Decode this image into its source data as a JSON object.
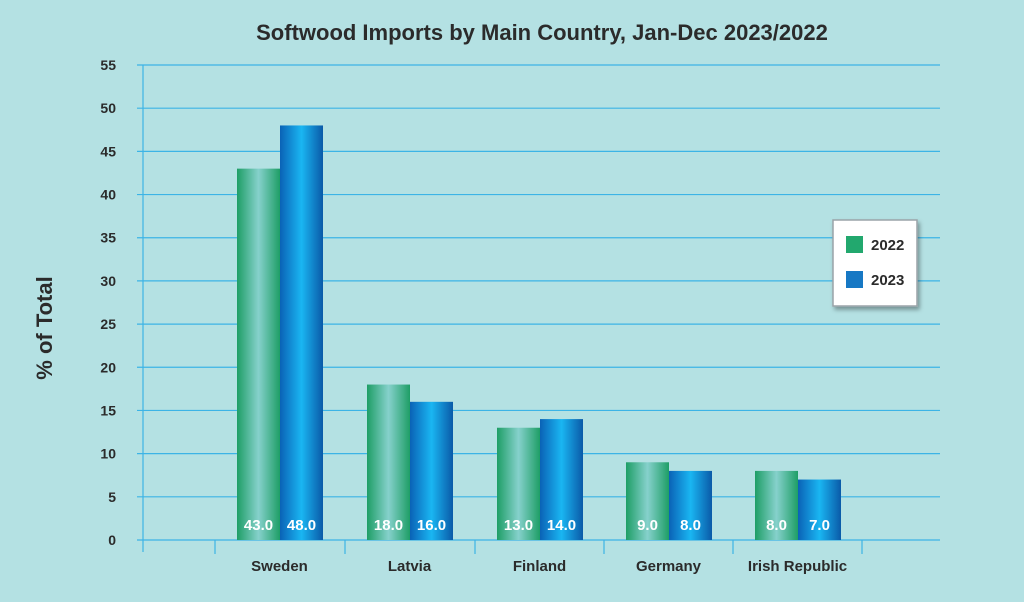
{
  "chart_data": {
    "type": "bar",
    "title": "Softwood Imports by Main Country, Jan-Dec 2023/2022",
    "ylabel": "% of Total",
    "xlabel": "",
    "ylim": [
      0,
      55
    ],
    "yticks": [
      0,
      5,
      10,
      15,
      20,
      25,
      30,
      35,
      40,
      45,
      50,
      55
    ],
    "grid": true,
    "legend_position": "right",
    "categories": [
      "Sweden",
      "Latvia",
      "Finland",
      "Germany",
      "Irish Republic"
    ],
    "series": [
      {
        "name": "2022",
        "values": [
          43.0,
          18.0,
          13.0,
          9.0,
          8.0
        ],
        "labels": [
          "43.0",
          "18.0",
          "13.0",
          "9.0",
          "8.0"
        ],
        "color": "#22a86e"
      },
      {
        "name": "2023",
        "values": [
          48.0,
          16.0,
          14.0,
          8.0,
          7.0
        ],
        "labels": [
          "48.0",
          "16.0",
          "14.0",
          "8.0",
          "7.0"
        ],
        "color": "#1778c4"
      }
    ]
  },
  "colors": {
    "background": "#b4e1e3",
    "gridline": "#3cb4e6",
    "text": "#2b2b2b",
    "label_text": "#ffffff"
  }
}
